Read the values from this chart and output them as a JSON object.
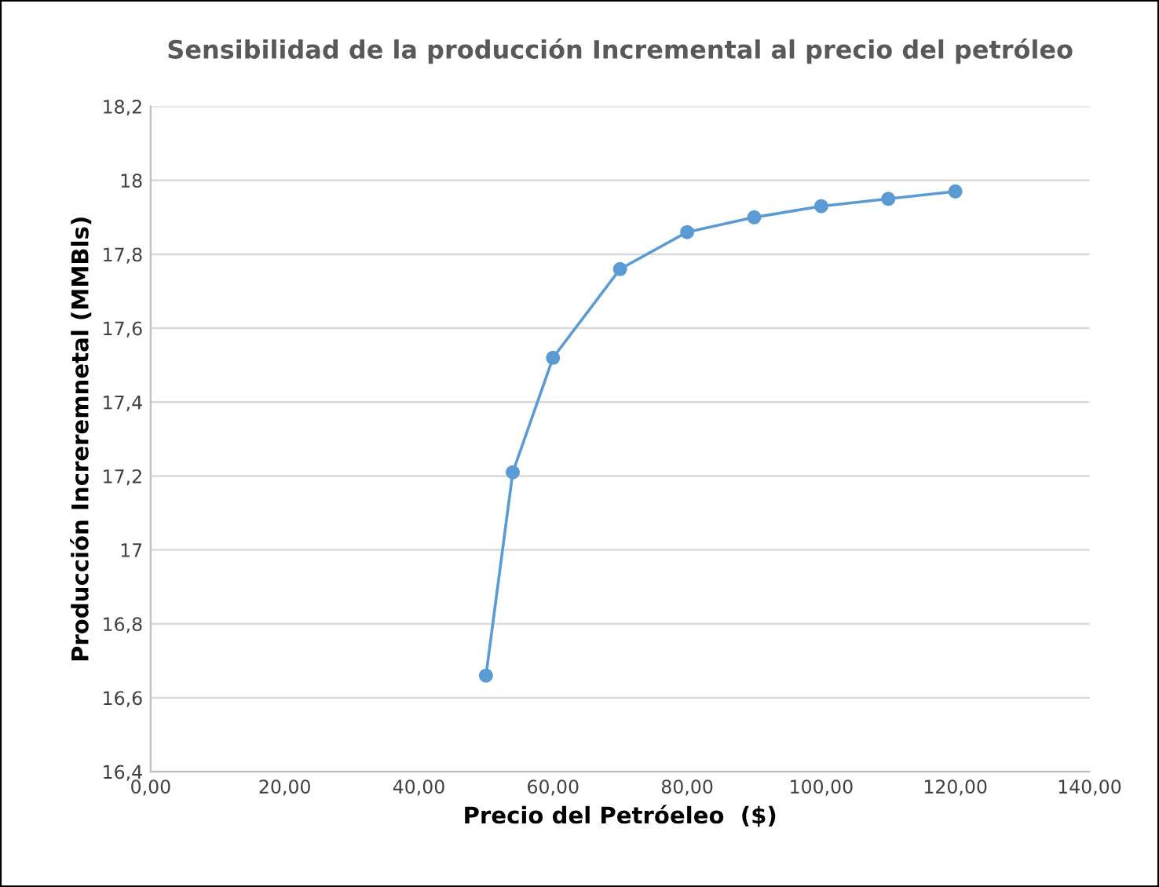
{
  "chart_data": {
    "type": "line",
    "title": "Sensibilidad de la producción Incremental al precio del petróleo",
    "xlabel": "Precio del Petróeleo  ($)",
    "ylabel": "Producción Increremnetal (MMBls)",
    "x": [
      50,
      54,
      60,
      70,
      80,
      90,
      100,
      110,
      120
    ],
    "series": [
      {
        "color": "#5b9bd5",
        "values": [
          16.66,
          17.21,
          17.52,
          17.76,
          17.86,
          17.9,
          17.93,
          17.95,
          17.97
        ]
      }
    ],
    "xlim": [
      0,
      140
    ],
    "xticks": [
      {
        "value": 0,
        "label": "0,00"
      },
      {
        "value": 20,
        "label": "20,00"
      },
      {
        "value": 40,
        "label": "40,00"
      },
      {
        "value": 60,
        "label": "60,00"
      },
      {
        "value": 80,
        "label": "80,00"
      },
      {
        "value": 100,
        "label": "100,00"
      },
      {
        "value": 120,
        "label": "120,00"
      },
      {
        "value": 140,
        "label": "140,00"
      }
    ],
    "ylim": [
      16.4,
      18.2
    ],
    "yticks": [
      {
        "value": 16.4,
        "label": "16,4"
      },
      {
        "value": 16.6,
        "label": "16,6"
      },
      {
        "value": 16.8,
        "label": "16,8"
      },
      {
        "value": 17,
        "label": "17"
      },
      {
        "value": 17.2,
        "label": "17,2"
      },
      {
        "value": 17.4,
        "label": "17,4"
      },
      {
        "value": 17.6,
        "label": "17,6"
      },
      {
        "value": 17.8,
        "label": "17,8"
      },
      {
        "value": 18,
        "label": "18"
      },
      {
        "value": 18.2,
        "label": "18,2"
      }
    ],
    "grid": "y",
    "marker": "circle",
    "line_style": "solid",
    "legend": false
  }
}
